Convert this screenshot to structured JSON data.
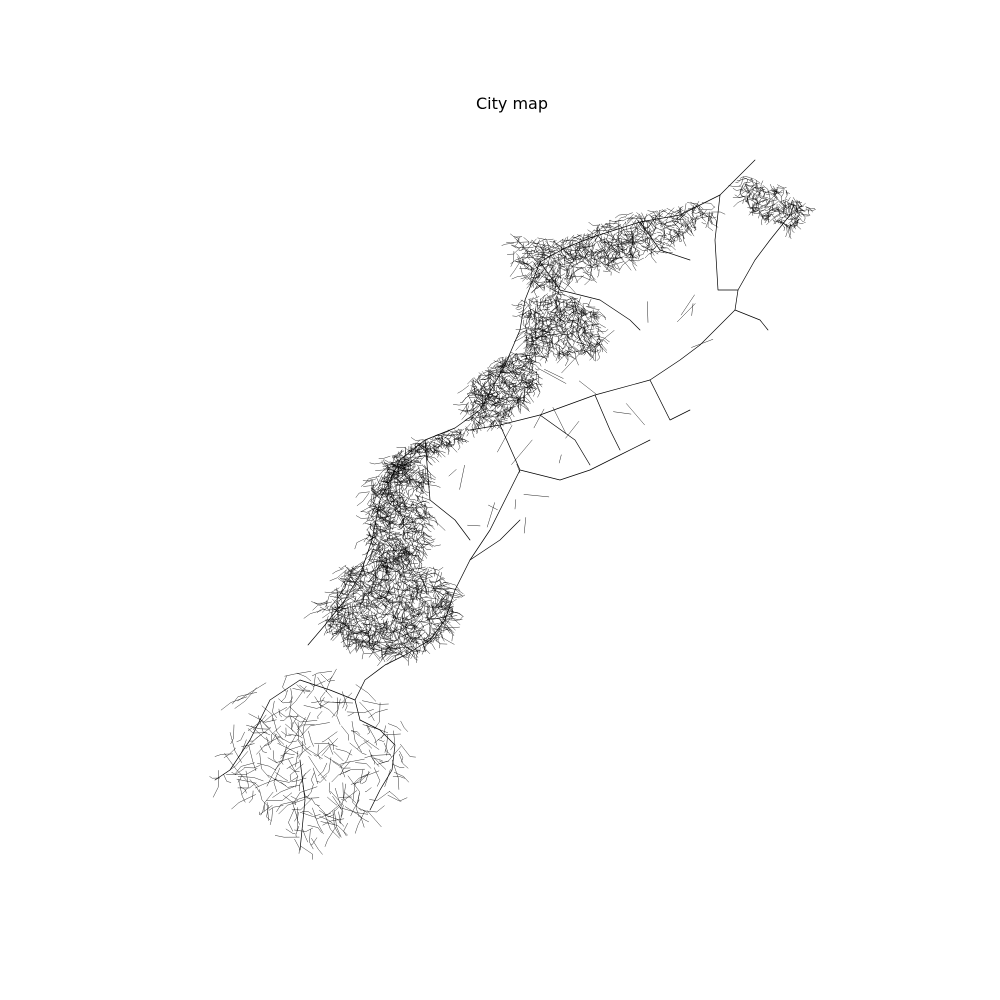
{
  "title": "City map",
  "colors": {
    "background": "#ffffff",
    "road": "#000000"
  }
}
